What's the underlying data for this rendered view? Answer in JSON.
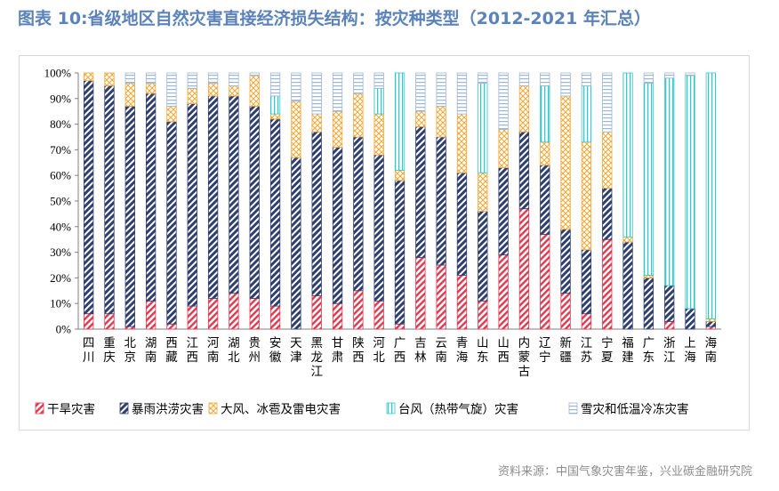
{
  "title": "图表 10:省级地区自然灾害直接经济损失结构：按灾种类型（2012-2021 年汇总）",
  "source": "资料来源：中国气象灾害年鉴，兴业碳金融研究院",
  "colors": {
    "drought": "#e0394f",
    "flood": "#2f3f6e",
    "wind": "#f2a93b",
    "typhoon": "#35c8cd",
    "snow": "#9cb6d6",
    "title": "#5b83b9"
  },
  "chart_data": {
    "type": "bar",
    "stacked": true,
    "percent": true,
    "ylim": [
      0,
      100
    ],
    "yticks": [
      "0%",
      "10%",
      "20%",
      "30%",
      "40%",
      "50%",
      "60%",
      "70%",
      "80%",
      "90%",
      "100%"
    ],
    "categories": [
      "四川",
      "重庆",
      "北京",
      "湖南",
      "西藏",
      "江西",
      "河南",
      "湖北",
      "贵州",
      "安徽",
      "天津",
      "黑龙江",
      "甘肃",
      "陕西",
      "河北",
      "广西",
      "吉林",
      "云南",
      "青海",
      "山东",
      "山西",
      "内蒙古",
      "辽宁",
      "新疆",
      "江苏",
      "宁夏",
      "福建",
      "广东",
      "浙江",
      "上海",
      "海南"
    ],
    "legend_position": "bottom",
    "series": [
      {
        "name": "干旱灾害",
        "key": "drought",
        "pattern": "hatch-red",
        "values": [
          6,
          6,
          1,
          11,
          2,
          9,
          12,
          14,
          12,
          9,
          0,
          13,
          10,
          15,
          11,
          2,
          28,
          25,
          21,
          11,
          29,
          47,
          37,
          14,
          6,
          35,
          0,
          0,
          3,
          0,
          1
        ]
      },
      {
        "name": "暴雨洪涝灾害",
        "key": "flood",
        "pattern": "hatch-navy",
        "values": [
          91,
          89,
          86,
          81,
          79,
          79,
          79,
          77,
          75,
          73,
          67,
          64,
          61,
          60,
          57,
          56,
          51,
          50,
          40,
          35,
          34,
          30,
          27,
          25,
          25,
          20,
          34,
          20,
          14,
          8,
          2
        ]
      },
      {
        "name": "大风、冰雹及雷电灾害",
        "key": "wind",
        "pattern": "cross-orange",
        "values": [
          3,
          5,
          9,
          4,
          6,
          6,
          5,
          4,
          12,
          2,
          22,
          7,
          14,
          17,
          16,
          4,
          6,
          12,
          23,
          15,
          15,
          18,
          9,
          52,
          42,
          22,
          2,
          1,
          0,
          0,
          1
        ]
      },
      {
        "name": "台风（热带气旋）灾害",
        "key": "typhoon",
        "pattern": "vlines-teal",
        "values": [
          0,
          0,
          0,
          0,
          0,
          0,
          0,
          0,
          0,
          7,
          0,
          0,
          0,
          0,
          10,
          38,
          0,
          0,
          0,
          35,
          0,
          0,
          22,
          0,
          22,
          0,
          64,
          75,
          81,
          91,
          96
        ]
      },
      {
        "name": "雪灾和低温冷冻灾害",
        "key": "snow",
        "pattern": "hlines-blue",
        "values": [
          0,
          0,
          4,
          4,
          13,
          6,
          4,
          5,
          1,
          9,
          11,
          16,
          15,
          8,
          6,
          0,
          15,
          13,
          16,
          4,
          22,
          5,
          5,
          9,
          5,
          23,
          0,
          4,
          2,
          1,
          0
        ]
      }
    ]
  }
}
